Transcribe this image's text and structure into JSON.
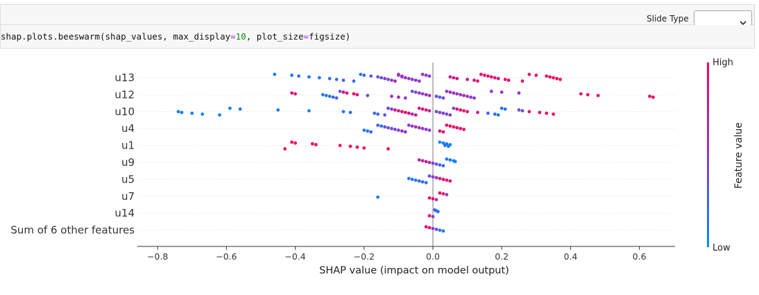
{
  "toolbar": {
    "slide_type_label": "Slide Type",
    "slide_type_value": ""
  },
  "code": {
    "line_parts": [
      {
        "t": "shap.plots.beeswarm(shap_values, max_display",
        "k": "plain"
      },
      {
        "t": "=",
        "k": "eq"
      },
      {
        "t": "10",
        "k": "num"
      },
      {
        "t": ", plot_size",
        "k": "plain"
      },
      {
        "t": "=",
        "k": "eq"
      },
      {
        "t": "figsize)",
        "k": "plain"
      }
    ]
  },
  "colors": {
    "low": "#008bfb",
    "high": "#ff0052",
    "mid": "#8a3bd1"
  },
  "chart_data": {
    "type": "scatter",
    "title": "",
    "xlabel": "SHAP value (impact on model output)",
    "ylabel": "",
    "xlim": [
      -0.82,
      0.7
    ],
    "xticks": [
      "−0.8",
      "−0.6",
      "−0.4",
      "−0.2",
      "0.0",
      "0.2",
      "0.4",
      "0.6"
    ],
    "xtick_values": [
      -0.8,
      -0.6,
      -0.4,
      -0.2,
      0.0,
      0.2,
      0.4,
      0.6
    ],
    "features": [
      "u13",
      "u12",
      "u10",
      "u4",
      "u1",
      "u9",
      "u5",
      "u7",
      "u14",
      "Sum of 6 other features"
    ],
    "colorbar": {
      "label": "Feature value",
      "high": "High",
      "low": "Low"
    },
    "series": [
      {
        "name": "u13",
        "points": [
          [
            -0.46,
            0.1
          ],
          [
            -0.41,
            0.1
          ],
          [
            -0.39,
            0.2
          ],
          [
            -0.36,
            0.15
          ],
          [
            -0.33,
            0.1
          ],
          [
            -0.3,
            0.15
          ],
          [
            -0.28,
            0.2
          ],
          [
            -0.26,
            0.3
          ],
          [
            -0.23,
            0.2
          ],
          [
            -0.21,
            0.1
          ],
          [
            -0.2,
            0.25
          ],
          [
            -0.18,
            0.3
          ],
          [
            -0.16,
            0.3
          ],
          [
            -0.15,
            0.4
          ],
          [
            -0.14,
            0.5
          ],
          [
            -0.13,
            0.4
          ],
          [
            -0.12,
            0.5
          ],
          [
            -0.11,
            0.6
          ],
          [
            -0.1,
            0.6
          ],
          [
            -0.1,
            0.55
          ],
          [
            -0.09,
            0.6
          ],
          [
            -0.09,
            0.55
          ],
          [
            -0.08,
            0.6
          ],
          [
            -0.07,
            0.55
          ],
          [
            -0.06,
            0.5
          ],
          [
            -0.05,
            0.5
          ],
          [
            -0.04,
            0.55
          ],
          [
            -0.03,
            0.6
          ],
          [
            -0.02,
            0.5
          ],
          [
            -0.01,
            0.45
          ],
          [
            0.05,
            0.75
          ],
          [
            0.06,
            0.8
          ],
          [
            0.07,
            0.8
          ],
          [
            0.1,
            0.8
          ],
          [
            0.12,
            0.85
          ],
          [
            0.13,
            0.85
          ],
          [
            0.14,
            0.9
          ],
          [
            0.15,
            0.9
          ],
          [
            0.16,
            0.85
          ],
          [
            0.17,
            0.9
          ],
          [
            0.18,
            0.85
          ],
          [
            0.19,
            0.8
          ],
          [
            0.21,
            0.9
          ],
          [
            0.22,
            0.9
          ],
          [
            0.26,
            0.9
          ],
          [
            0.28,
            0.9
          ],
          [
            0.3,
            0.9
          ],
          [
            0.33,
            0.9
          ],
          [
            0.34,
            0.9
          ],
          [
            0.35,
            0.95
          ],
          [
            0.36,
            0.95
          ],
          [
            0.37,
            0.95
          ]
        ]
      },
      {
        "name": "u12",
        "points": [
          [
            -0.41,
            0.85
          ],
          [
            -0.4,
            0.85
          ],
          [
            -0.32,
            0.1
          ],
          [
            -0.31,
            0.15
          ],
          [
            -0.3,
            0.1
          ],
          [
            -0.29,
            0.2
          ],
          [
            -0.28,
            0.3
          ],
          [
            -0.27,
            0.35
          ],
          [
            -0.26,
            0.8
          ],
          [
            -0.25,
            0.8
          ],
          [
            -0.23,
            0.9
          ],
          [
            -0.22,
            0.9
          ],
          [
            -0.19,
            0.4
          ],
          [
            -0.12,
            0.6
          ],
          [
            -0.1,
            0.6
          ],
          [
            -0.08,
            0.5
          ],
          [
            -0.06,
            0.4
          ],
          [
            -0.05,
            0.35
          ],
          [
            -0.04,
            0.6
          ],
          [
            -0.03,
            0.5
          ],
          [
            -0.02,
            0.6
          ],
          [
            -0.01,
            0.6
          ],
          [
            0.01,
            0.4
          ],
          [
            0.02,
            0.3
          ],
          [
            0.03,
            0.4
          ],
          [
            0.04,
            0.5
          ],
          [
            0.05,
            0.6
          ],
          [
            0.06,
            0.6
          ],
          [
            0.07,
            0.55
          ],
          [
            0.08,
            0.6
          ],
          [
            0.09,
            0.6
          ],
          [
            0.1,
            0.55
          ],
          [
            0.11,
            0.5
          ],
          [
            0.12,
            0.5
          ],
          [
            0.17,
            0.55
          ],
          [
            0.2,
            0.5
          ],
          [
            0.25,
            0.5
          ],
          [
            0.43,
            0.9
          ],
          [
            0.45,
            0.9
          ],
          [
            0.48,
            0.9
          ],
          [
            0.63,
            0.95
          ],
          [
            0.64,
            0.95
          ]
        ]
      },
      {
        "name": "u10",
        "points": [
          [
            -0.74,
            0.05
          ],
          [
            -0.73,
            0.1
          ],
          [
            -0.7,
            0.05
          ],
          [
            -0.67,
            0.05
          ],
          [
            -0.62,
            0.05
          ],
          [
            -0.59,
            0.05
          ],
          [
            -0.56,
            0.1
          ],
          [
            -0.45,
            0.1
          ],
          [
            -0.36,
            0.1
          ],
          [
            -0.26,
            0.1
          ],
          [
            -0.24,
            0.15
          ],
          [
            -0.17,
            0.2
          ],
          [
            -0.16,
            0.25
          ],
          [
            -0.14,
            0.3
          ],
          [
            -0.13,
            0.4
          ],
          [
            -0.12,
            0.5
          ],
          [
            -0.11,
            0.8
          ],
          [
            -0.1,
            0.85
          ],
          [
            -0.09,
            0.9
          ],
          [
            -0.08,
            0.85
          ],
          [
            -0.07,
            0.9
          ],
          [
            -0.06,
            0.6
          ],
          [
            -0.05,
            0.8
          ],
          [
            -0.04,
            0.7
          ],
          [
            -0.03,
            0.9
          ],
          [
            -0.02,
            0.8
          ],
          [
            -0.01,
            0.7
          ],
          [
            0.01,
            0.4
          ],
          [
            0.02,
            0.45
          ],
          [
            0.03,
            0.5
          ],
          [
            0.04,
            0.4
          ],
          [
            0.05,
            0.5
          ],
          [
            0.06,
            0.4
          ],
          [
            0.07,
            0.85
          ],
          [
            0.08,
            0.9
          ],
          [
            0.09,
            0.8
          ],
          [
            0.1,
            0.85
          ],
          [
            0.13,
            0.7
          ],
          [
            0.16,
            0.2
          ],
          [
            0.18,
            0.15
          ],
          [
            0.19,
            0.1
          ],
          [
            0.2,
            0.1
          ],
          [
            0.21,
            0.15
          ],
          [
            0.25,
            0.3
          ],
          [
            0.26,
            0.5
          ],
          [
            0.28,
            0.85
          ],
          [
            0.31,
            0.9
          ],
          [
            0.33,
            0.9
          ],
          [
            0.35,
            0.95
          ]
        ]
      },
      {
        "name": "u4",
        "points": [
          [
            -0.2,
            0.1
          ],
          [
            -0.19,
            0.15
          ],
          [
            -0.18,
            0.2
          ],
          [
            -0.16,
            0.25
          ],
          [
            -0.15,
            0.2
          ],
          [
            -0.14,
            0.4
          ],
          [
            -0.13,
            0.35
          ],
          [
            -0.12,
            0.4
          ],
          [
            -0.11,
            0.45
          ],
          [
            -0.1,
            0.5
          ],
          [
            -0.09,
            0.55
          ],
          [
            -0.08,
            0.5
          ],
          [
            -0.07,
            0.5
          ],
          [
            -0.06,
            0.55
          ],
          [
            -0.05,
            0.6
          ],
          [
            -0.04,
            0.6
          ],
          [
            -0.03,
            0.55
          ],
          [
            -0.02,
            0.5
          ],
          [
            -0.01,
            0.5
          ],
          [
            0.02,
            0.9
          ],
          [
            0.03,
            0.85
          ],
          [
            0.04,
            0.9
          ],
          [
            0.05,
            0.9
          ],
          [
            0.06,
            0.95
          ],
          [
            0.07,
            0.9
          ],
          [
            0.08,
            0.85
          ],
          [
            0.09,
            0.9
          ]
        ]
      },
      {
        "name": "u1",
        "points": [
          [
            -0.43,
            0.95
          ],
          [
            -0.41,
            0.95
          ],
          [
            -0.4,
            0.95
          ],
          [
            -0.35,
            0.95
          ],
          [
            -0.34,
            0.95
          ],
          [
            -0.27,
            0.95
          ],
          [
            -0.24,
            0.95
          ],
          [
            -0.22,
            0.95
          ],
          [
            -0.2,
            0.95
          ],
          [
            -0.13,
            0.95
          ],
          [
            0.02,
            0.05
          ],
          [
            0.03,
            0.1
          ],
          [
            0.04,
            0.1
          ],
          [
            0.05,
            0.05
          ],
          [
            0.035,
            0.15
          ],
          [
            0.045,
            0.1
          ]
        ]
      },
      {
        "name": "u9",
        "points": [
          [
            -0.04,
            0.7
          ],
          [
            -0.03,
            0.7
          ],
          [
            -0.02,
            0.75
          ],
          [
            -0.01,
            0.7
          ],
          [
            0.0,
            0.5
          ],
          [
            0.01,
            0.3
          ],
          [
            0.02,
            0.2
          ],
          [
            0.03,
            0.15
          ],
          [
            0.04,
            0.1
          ],
          [
            0.05,
            0.1
          ],
          [
            0.06,
            0.05
          ],
          [
            0.065,
            0.05
          ]
        ]
      },
      {
        "name": "u5",
        "points": [
          [
            -0.07,
            0.1
          ],
          [
            -0.06,
            0.1
          ],
          [
            -0.05,
            0.15
          ],
          [
            -0.04,
            0.2
          ],
          [
            -0.03,
            0.2
          ],
          [
            -0.02,
            0.15
          ],
          [
            -0.01,
            0.4
          ],
          [
            0.0,
            0.5
          ],
          [
            0.01,
            0.6
          ],
          [
            0.02,
            0.85
          ],
          [
            0.03,
            0.9
          ],
          [
            0.04,
            0.9
          ],
          [
            0.05,
            0.85
          ]
        ]
      },
      {
        "name": "u7",
        "points": [
          [
            -0.16,
            0.05
          ],
          [
            -0.01,
            0.95
          ],
          [
            0.0,
            0.9
          ],
          [
            0.01,
            0.6
          ],
          [
            0.02,
            0.9
          ],
          [
            0.03,
            0.85
          ],
          [
            0.04,
            0.5
          ]
        ]
      },
      {
        "name": "u14",
        "points": [
          [
            -0.01,
            0.9
          ],
          [
            0.0,
            0.5
          ],
          [
            0.005,
            0.3
          ],
          [
            0.01,
            0.15
          ],
          [
            0.015,
            0.1
          ]
        ]
      },
      {
        "name": "Sum of 6 other features",
        "points": [
          [
            -0.02,
            0.9
          ],
          [
            -0.01,
            0.8
          ],
          [
            0.0,
            0.5
          ],
          [
            0.01,
            0.4
          ],
          [
            0.02,
            0.2
          ],
          [
            0.03,
            0.1
          ]
        ]
      }
    ]
  }
}
